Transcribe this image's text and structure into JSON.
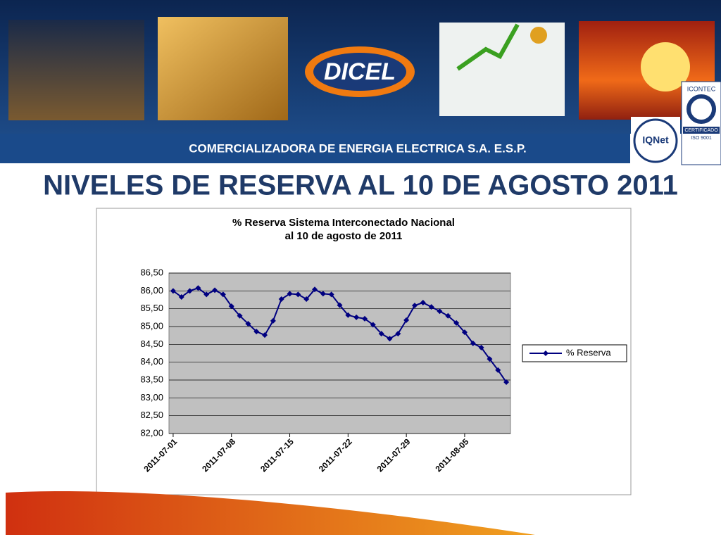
{
  "header": {
    "logo": "DICEL",
    "company": "COMERCIALIZADORA DE ENERGIA ELECTRICA S.A. E.S.P.",
    "cert1_top": "ICONTEC",
    "cert1_bottom": "CERTIFICADO",
    "cert1_iso": "ISO 9001",
    "cert2": "IQNet"
  },
  "slide_title": "NIVELES DE RESERVA AL 10 DE AGOSTO 2011",
  "chart_data": {
    "type": "line",
    "title": [
      "% Reserva Sistema Interconectado Nacional",
      "al 10 de agosto de 2011"
    ],
    "categories": [
      "2011-07-01",
      null,
      null,
      null,
      null,
      null,
      null,
      "2011-07-08",
      null,
      null,
      null,
      null,
      null,
      null,
      "2011-07-15",
      null,
      null,
      null,
      null,
      null,
      null,
      "2011-07-22",
      null,
      null,
      null,
      null,
      null,
      null,
      "2011-07-29",
      null,
      null,
      null,
      null,
      null,
      null,
      "2011-08-05",
      null,
      null,
      null,
      null,
      null
    ],
    "series": [
      {
        "name": "% Reserva",
        "color": "#000080",
        "values": [
          86.0,
          85.83,
          86.0,
          86.08,
          85.9,
          86.02,
          85.9,
          85.57,
          85.3,
          85.08,
          84.86,
          84.76,
          85.16,
          85.77,
          85.92,
          85.9,
          85.77,
          86.04,
          85.92,
          85.9,
          85.6,
          85.32,
          85.26,
          85.22,
          85.05,
          84.8,
          84.66,
          84.8,
          85.18,
          85.59,
          85.67,
          85.55,
          85.43,
          85.3,
          85.1,
          84.84,
          84.53,
          84.41,
          84.09,
          83.78,
          83.44
        ]
      }
    ],
    "ylim": [
      82,
      86.5
    ],
    "yticks": [
      {
        "value": 82,
        "label": "82,00"
      },
      {
        "value": 82.5,
        "label": "82,50"
      },
      {
        "value": 83,
        "label": "83,00"
      },
      {
        "value": 83.5,
        "label": "83,50"
      },
      {
        "value": 84,
        "label": "84,00"
      },
      {
        "value": 84.5,
        "label": "84,50"
      },
      {
        "value": 85,
        "label": "85,00"
      },
      {
        "value": 85.5,
        "label": "85,50"
      },
      {
        "value": 86,
        "label": "86,00"
      },
      {
        "value": 86.5,
        "label": "86,50"
      }
    ],
    "grid": true,
    "legend": "right"
  }
}
